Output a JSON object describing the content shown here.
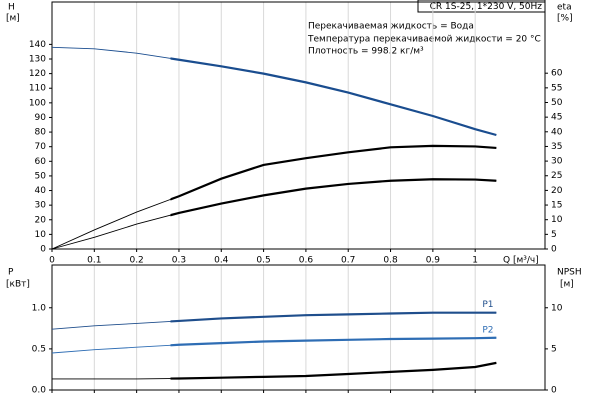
{
  "chart_data": [
    {
      "type": "line",
      "title": "CR 1S-25, 1*230 V, 50Hz",
      "annotations": [
        "Перекачиваемая жидкость = Вода",
        "Температура перекачиваемой жидкости = 20 °C",
        "Плотность = 998.2 кг/м³"
      ],
      "xlabel": "Q [м³/ч]",
      "ylabel": "H",
      "yunit": "[м]",
      "y2label": "eta",
      "y2unit": "[%]",
      "x": [
        0,
        0.1,
        0.2,
        0.3,
        0.4,
        0.5,
        0.6,
        0.7,
        0.8,
        0.9,
        1.0,
        1.05
      ],
      "xlim": [
        0,
        1.165
      ],
      "xticks": [
        0,
        0.1,
        0.2,
        0.3,
        0.4,
        0.5,
        0.6,
        0.7,
        0.8,
        0.9,
        1
      ],
      "ylim": [
        0,
        169
      ],
      "yticks": [
        0,
        10,
        20,
        30,
        40,
        50,
        60,
        70,
        80,
        90,
        100,
        110,
        120,
        130,
        140
      ],
      "y2lim": [
        0,
        84.3
      ],
      "y2ticks": [
        0,
        5,
        10,
        15,
        20,
        25,
        30,
        35,
        40,
        45,
        50,
        55,
        60
      ],
      "grid": "x",
      "xtick_labels": true,
      "operating_range": [
        0.28,
        1.05
      ],
      "series": [
        {
          "color": "#1a4d8f",
          "axis": "y",
          "values": [
            138,
            137,
            134,
            129.5,
            125,
            120,
            114,
            107,
            99,
            91,
            82,
            78
          ]
        },
        {
          "color": "#000000",
          "axis": "y2",
          "values": [
            0,
            6.5,
            12.6,
            18,
            24,
            28.7,
            31,
            33,
            34.7,
            35.2,
            35,
            34.5
          ]
        },
        {
          "color": "#000000",
          "axis": "y2",
          "values": [
            0,
            4,
            8.5,
            12.3,
            15.5,
            18.3,
            20.6,
            22.2,
            23.3,
            23.8,
            23.7,
            23.3
          ]
        }
      ]
    },
    {
      "type": "line",
      "ylabel": "P",
      "yunit": "[кВт]",
      "y2label": "NPSH",
      "y2unit": "[м]",
      "x": [
        0,
        0.1,
        0.2,
        0.3,
        0.4,
        0.5,
        0.6,
        0.7,
        0.8,
        0.9,
        1.0,
        1.05
      ],
      "xlim": [
        0,
        1.165
      ],
      "xticks": [
        0,
        0.1,
        0.2,
        0.3,
        0.4,
        0.5,
        0.6,
        0.7,
        0.8,
        0.9,
        1
      ],
      "ylim": [
        0,
        1.52
      ],
      "yticks": [
        {
          "value": 0,
          "label": "0.0"
        },
        0.5,
        {
          "value": 1,
          "label": "1.0"
        }
      ],
      "y2lim": [
        0,
        15.2
      ],
      "y2ticks": [
        0,
        5,
        10
      ],
      "grid": "x",
      "xtick_labels": false,
      "operating_range": [
        0.28,
        1.05
      ],
      "series": [
        {
          "name": "P1",
          "color": "#1f4e8c",
          "axis": "y",
          "values": [
            0.74,
            0.78,
            0.81,
            0.84,
            0.87,
            0.89,
            0.91,
            0.92,
            0.93,
            0.94,
            0.94,
            0.94
          ]
        },
        {
          "name": "P2",
          "color": "#2e6db4",
          "axis": "y",
          "values": [
            0.45,
            0.49,
            0.52,
            0.55,
            0.57,
            0.59,
            0.6,
            0.61,
            0.62,
            0.625,
            0.63,
            0.635
          ]
        },
        {
          "color": "#000000",
          "axis": "y2",
          "values": [
            1.35,
            1.35,
            1.35,
            1.4,
            1.5,
            1.6,
            1.7,
            1.95,
            2.2,
            2.45,
            2.8,
            3.3
          ]
        }
      ]
    }
  ]
}
